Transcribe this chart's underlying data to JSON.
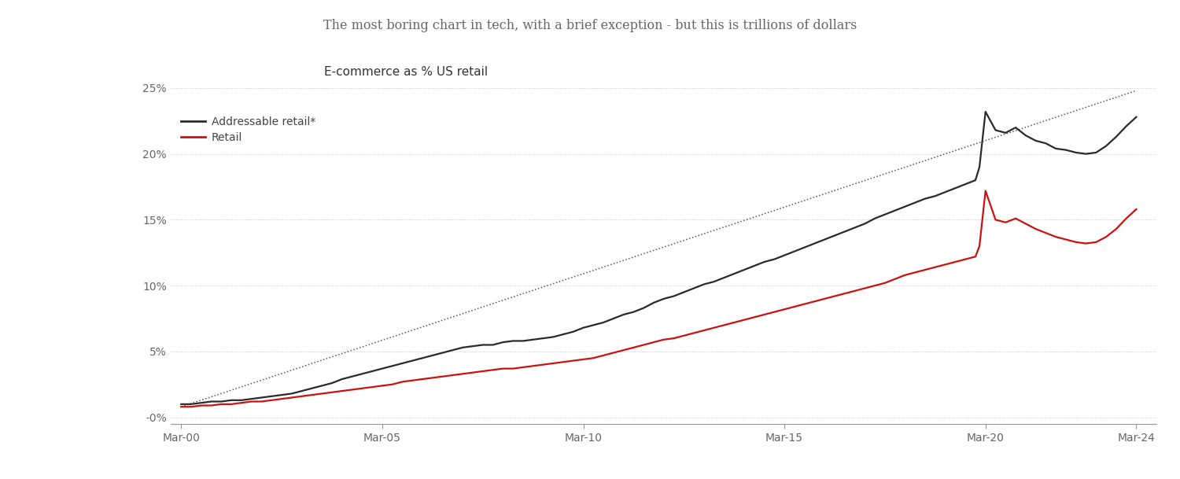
{
  "title": "The most boring chart in tech, with a brief exception - but this is trillions of dollars",
  "subtitle": "E-commerce as % US retail",
  "background_top": "#f0f0f0",
  "background_chart": "#ffffff",
  "title_color": "#666666",
  "subtitle_color": "#333333",
  "legend_labels": [
    "Addressable retail*",
    "Retail"
  ],
  "legend_colors": [
    "#333333",
    "#cc2222"
  ],
  "yticks": [
    0,
    0.05,
    0.1,
    0.15,
    0.2,
    0.25
  ],
  "ytick_labels": [
    "-0%",
    "5%",
    "10%",
    "15%",
    "20%",
    "25%"
  ],
  "xtick_labels": [
    "Mar-00",
    "Mar-05",
    "Mar-10",
    "Mar-15",
    "Mar-20",
    "Mar-24"
  ],
  "xtick_positions": [
    2000.25,
    2005.25,
    2010.25,
    2015.25,
    2020.25,
    2024.0
  ],
  "grid_color": "#bbbbbb",
  "addressable_retail_years": [
    2000.25,
    2000.5,
    2000.75,
    2001.0,
    2001.25,
    2001.5,
    2001.75,
    2002.0,
    2002.25,
    2002.5,
    2002.75,
    2003.0,
    2003.25,
    2003.5,
    2003.75,
    2004.0,
    2004.25,
    2004.5,
    2004.75,
    2005.0,
    2005.25,
    2005.5,
    2005.75,
    2006.0,
    2006.25,
    2006.5,
    2006.75,
    2007.0,
    2007.25,
    2007.5,
    2007.75,
    2008.0,
    2008.25,
    2008.5,
    2008.75,
    2009.0,
    2009.25,
    2009.5,
    2009.75,
    2010.0,
    2010.25,
    2010.5,
    2010.75,
    2011.0,
    2011.25,
    2011.5,
    2011.75,
    2012.0,
    2012.25,
    2012.5,
    2012.75,
    2013.0,
    2013.25,
    2013.5,
    2013.75,
    2014.0,
    2014.25,
    2014.5,
    2014.75,
    2015.0,
    2015.25,
    2015.5,
    2015.75,
    2016.0,
    2016.25,
    2016.5,
    2016.75,
    2017.0,
    2017.25,
    2017.5,
    2017.75,
    2018.0,
    2018.25,
    2018.5,
    2018.75,
    2019.0,
    2019.25,
    2019.5,
    2019.75,
    2020.0,
    2020.1,
    2020.25,
    2020.5,
    2020.75,
    2021.0,
    2021.25,
    2021.5,
    2021.75,
    2022.0,
    2022.25,
    2022.5,
    2022.75,
    2023.0,
    2023.25,
    2023.5,
    2023.75,
    2024.0
  ],
  "addressable_retail_values": [
    0.01,
    0.01,
    0.011,
    0.012,
    0.012,
    0.013,
    0.013,
    0.014,
    0.015,
    0.016,
    0.017,
    0.018,
    0.02,
    0.022,
    0.024,
    0.026,
    0.029,
    0.031,
    0.033,
    0.035,
    0.037,
    0.039,
    0.041,
    0.043,
    0.045,
    0.047,
    0.049,
    0.051,
    0.053,
    0.054,
    0.055,
    0.055,
    0.057,
    0.058,
    0.058,
    0.059,
    0.06,
    0.061,
    0.063,
    0.065,
    0.068,
    0.07,
    0.072,
    0.075,
    0.078,
    0.08,
    0.083,
    0.087,
    0.09,
    0.092,
    0.095,
    0.098,
    0.101,
    0.103,
    0.106,
    0.109,
    0.112,
    0.115,
    0.118,
    0.12,
    0.123,
    0.126,
    0.129,
    0.132,
    0.135,
    0.138,
    0.141,
    0.144,
    0.147,
    0.151,
    0.154,
    0.157,
    0.16,
    0.163,
    0.166,
    0.168,
    0.171,
    0.174,
    0.177,
    0.18,
    0.19,
    0.232,
    0.218,
    0.216,
    0.22,
    0.214,
    0.21,
    0.208,
    0.204,
    0.203,
    0.201,
    0.2,
    0.201,
    0.206,
    0.213,
    0.221,
    0.228
  ],
  "retail_years": [
    2000.25,
    2000.5,
    2000.75,
    2001.0,
    2001.25,
    2001.5,
    2001.75,
    2002.0,
    2002.25,
    2002.5,
    2002.75,
    2003.0,
    2003.25,
    2003.5,
    2003.75,
    2004.0,
    2004.25,
    2004.5,
    2004.75,
    2005.0,
    2005.25,
    2005.5,
    2005.75,
    2006.0,
    2006.25,
    2006.5,
    2006.75,
    2007.0,
    2007.25,
    2007.5,
    2007.75,
    2008.0,
    2008.25,
    2008.5,
    2008.75,
    2009.0,
    2009.25,
    2009.5,
    2009.75,
    2010.0,
    2010.25,
    2010.5,
    2010.75,
    2011.0,
    2011.25,
    2011.5,
    2011.75,
    2012.0,
    2012.25,
    2012.5,
    2012.75,
    2013.0,
    2013.25,
    2013.5,
    2013.75,
    2014.0,
    2014.25,
    2014.5,
    2014.75,
    2015.0,
    2015.25,
    2015.5,
    2015.75,
    2016.0,
    2016.25,
    2016.5,
    2016.75,
    2017.0,
    2017.25,
    2017.5,
    2017.75,
    2018.0,
    2018.25,
    2018.5,
    2018.75,
    2019.0,
    2019.25,
    2019.5,
    2019.75,
    2020.0,
    2020.1,
    2020.25,
    2020.5,
    2020.75,
    2021.0,
    2021.25,
    2021.5,
    2021.75,
    2022.0,
    2022.25,
    2022.5,
    2022.75,
    2023.0,
    2023.25,
    2023.5,
    2023.75,
    2024.0
  ],
  "retail_values": [
    0.008,
    0.008,
    0.009,
    0.009,
    0.01,
    0.01,
    0.011,
    0.012,
    0.012,
    0.013,
    0.014,
    0.015,
    0.016,
    0.017,
    0.018,
    0.019,
    0.02,
    0.021,
    0.022,
    0.023,
    0.024,
    0.025,
    0.027,
    0.028,
    0.029,
    0.03,
    0.031,
    0.032,
    0.033,
    0.034,
    0.035,
    0.036,
    0.037,
    0.037,
    0.038,
    0.039,
    0.04,
    0.041,
    0.042,
    0.043,
    0.044,
    0.045,
    0.047,
    0.049,
    0.051,
    0.053,
    0.055,
    0.057,
    0.059,
    0.06,
    0.062,
    0.064,
    0.066,
    0.068,
    0.07,
    0.072,
    0.074,
    0.076,
    0.078,
    0.08,
    0.082,
    0.084,
    0.086,
    0.088,
    0.09,
    0.092,
    0.094,
    0.096,
    0.098,
    0.1,
    0.102,
    0.105,
    0.108,
    0.11,
    0.112,
    0.114,
    0.116,
    0.118,
    0.12,
    0.122,
    0.13,
    0.172,
    0.15,
    0.148,
    0.151,
    0.147,
    0.143,
    0.14,
    0.137,
    0.135,
    0.133,
    0.132,
    0.133,
    0.137,
    0.143,
    0.151,
    0.158
  ],
  "trendline_x": [
    2000.25,
    2024.0
  ],
  "trendline_y": [
    0.008,
    0.248
  ],
  "xlim": [
    2000.0,
    2024.5
  ],
  "ylim": [
    -0.005,
    0.275
  ]
}
